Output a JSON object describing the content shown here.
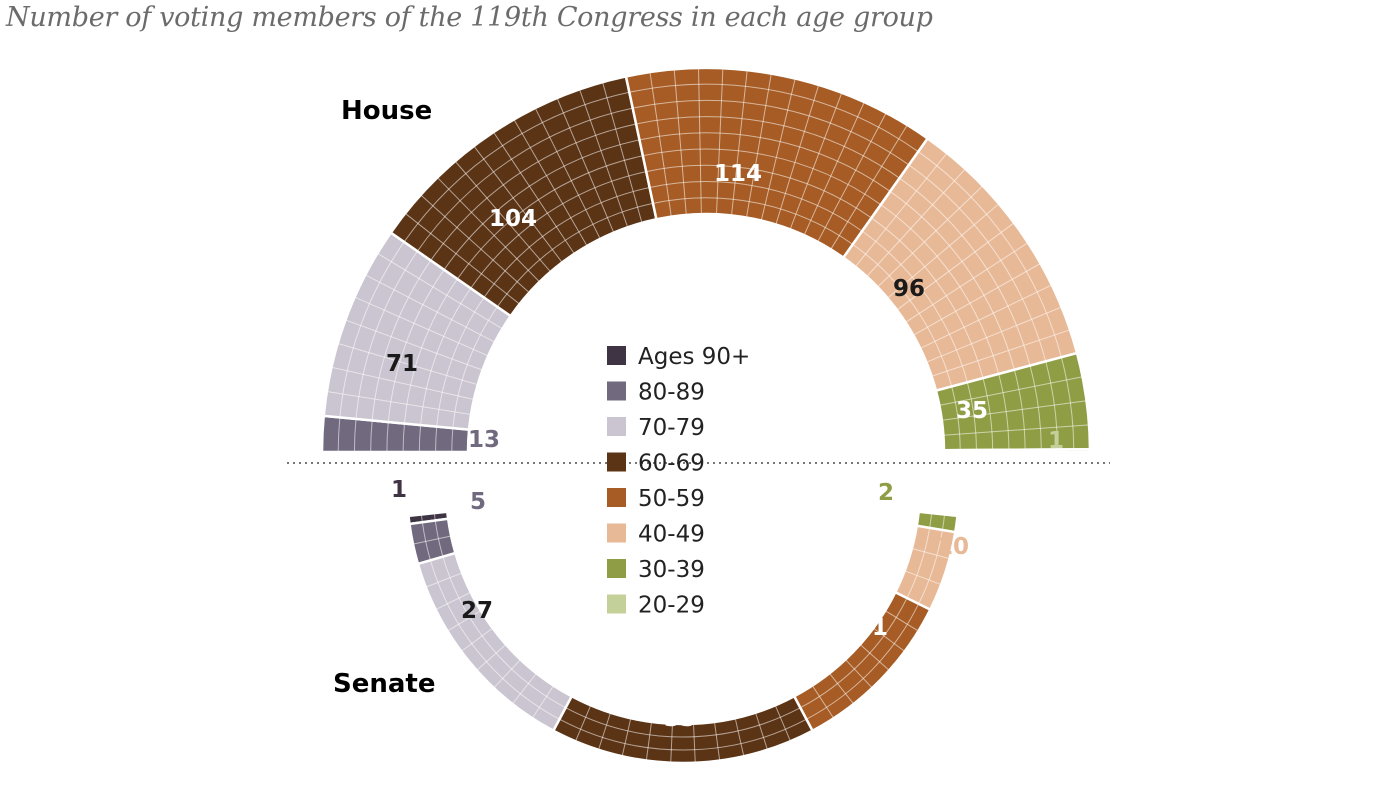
{
  "title": "Number of voting members of the 119th Congress in each age group",
  "chart_data": {
    "type": "waffle-semicircle",
    "title": "Number of voting members of the 119th Congress in each age group",
    "groups": [
      "Ages 90+",
      "80-89",
      "70-79",
      "60-69",
      "50-59",
      "40-49",
      "30-39",
      "20-29"
    ],
    "colors": {
      "Ages 90+": "#3e3443",
      "80-89": "#716a7f",
      "70-79": "#cac5d0",
      "60-69": "#5b3315",
      "50-59": "#a65c24",
      "40-49": "#e8b997",
      "30-39": "#8f9e45",
      "20-29": "#c3d09a"
    },
    "series": [
      {
        "name": "House",
        "values": [
          0,
          13,
          71,
          104,
          114,
          96,
          35,
          1
        ]
      },
      {
        "name": "Senate",
        "values": [
          1,
          5,
          27,
          33,
          21,
          10,
          2,
          0
        ]
      }
    ],
    "labels": {
      "house": {
        "g80": "13",
        "g70": "71",
        "g60": "104",
        "g50": "114",
        "g40": "96",
        "g30": "35",
        "g20": "1"
      },
      "senate": {
        "g90": "1",
        "g80": "5",
        "g70": "27",
        "g60": "33",
        "g50": "21",
        "g40": "10",
        "g30": "2"
      }
    },
    "chamber_labels": {
      "house": "House",
      "senate": "Senate"
    }
  }
}
